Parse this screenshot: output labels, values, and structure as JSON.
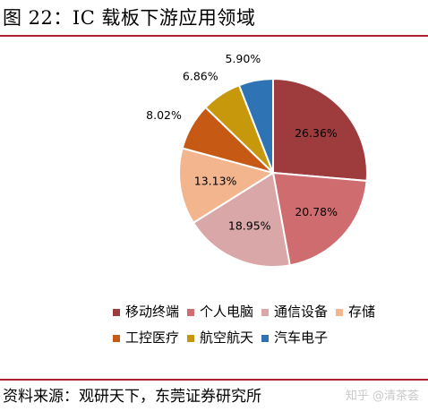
{
  "title": "图 22：IC 载板下游应用领域",
  "source": "资料来源：观研天下，东莞证券研究所",
  "watermark": {
    "text": "知乎 @清茶荟"
  },
  "chart_data": {
    "type": "pie",
    "start": "12 o'clock, clockwise",
    "slices": [
      {
        "label": "移动终端",
        "value": 26.36,
        "value_label": "26.36%",
        "color": "#9e3b3d"
      },
      {
        "label": "个人电脑",
        "value": 20.78,
        "value_label": "20.78%",
        "color": "#cf6c6f"
      },
      {
        "label": "通信设备",
        "value": 18.95,
        "value_label": "18.95%",
        "color": "#daa7a9"
      },
      {
        "label": "存储",
        "value": 13.13,
        "value_label": "13.13%",
        "color": "#f2b58e"
      },
      {
        "label": "工控医疗",
        "value": 8.02,
        "value_label": "8.02%",
        "color": "#c65a14"
      },
      {
        "label": "航空航天",
        "value": 6.86,
        "value_label": "6.86%",
        "color": "#c8980c"
      },
      {
        "label": "汽车电子",
        "value": 5.9,
        "value_label": "5.90%",
        "color": "#2e74b5"
      }
    ],
    "legend_position": "bottom"
  }
}
